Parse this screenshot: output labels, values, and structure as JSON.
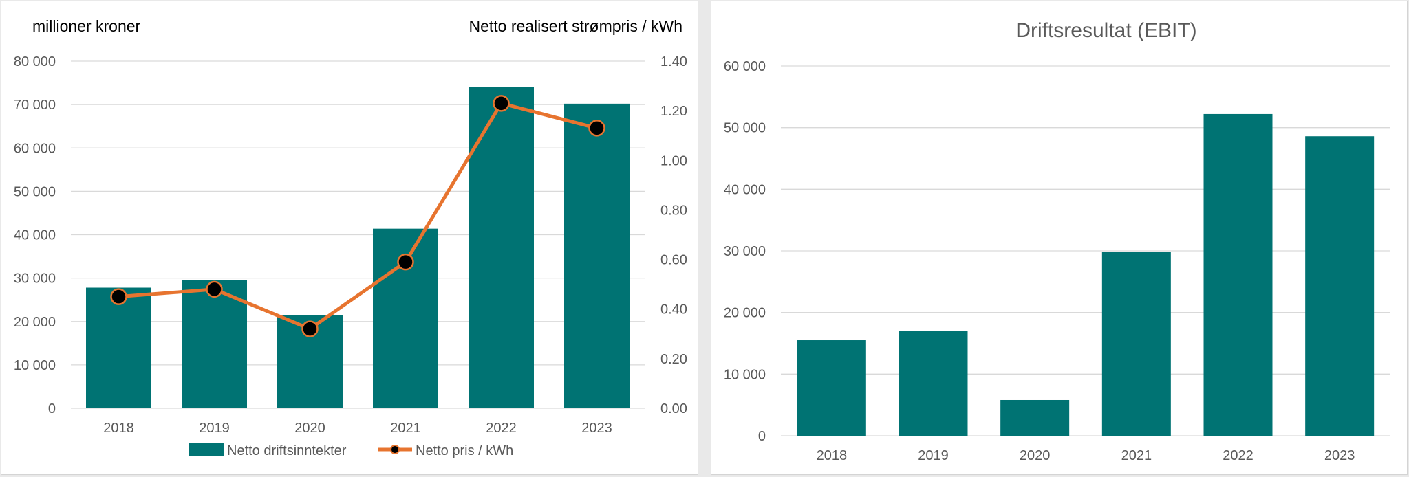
{
  "colors": {
    "bar": "#007373",
    "line": "#E7742F",
    "marker": "#000000"
  },
  "chart_data": [
    {
      "type": "bar+line",
      "title": "",
      "y_left_label": "millioner kroner",
      "y_right_label": "Netto realisert strømpris / kWh",
      "categories": [
        "2018",
        "2019",
        "2020",
        "2021",
        "2022",
        "2023"
      ],
      "ylim_left": [
        0,
        80000
      ],
      "ylim_right": [
        0,
        1.4
      ],
      "y_left_ticks": [
        "0",
        "10 000",
        "20 000",
        "30 000",
        "40 000",
        "50 000",
        "60 000",
        "70 000",
        "80 000"
      ],
      "y_right_ticks": [
        "0.00",
        "0.20",
        "0.40",
        "0.60",
        "0.80",
        "1.00",
        "1.20",
        "1.40"
      ],
      "grid": true,
      "legend_position": "bottom",
      "series": [
        {
          "name": "Netto driftsinntekter",
          "type": "bar",
          "axis": "left",
          "values": [
            27800,
            29500,
            21400,
            41400,
            74000,
            70200
          ]
        },
        {
          "name": "Netto pris / kWh",
          "type": "line",
          "axis": "right",
          "values": [
            0.45,
            0.48,
            0.32,
            0.59,
            1.23,
            1.13
          ]
        }
      ]
    },
    {
      "type": "bar",
      "title": "Driftsresultat (EBIT)",
      "categories": [
        "2018",
        "2019",
        "2020",
        "2021",
        "2022",
        "2023"
      ],
      "ylim": [
        0,
        60000
      ],
      "y_ticks": [
        "0",
        "10 000",
        "20 000",
        "30 000",
        "40 000",
        "50 000",
        "60 000"
      ],
      "grid": true,
      "values": [
        15500,
        17000,
        5800,
        29800,
        52200,
        48600
      ]
    }
  ]
}
